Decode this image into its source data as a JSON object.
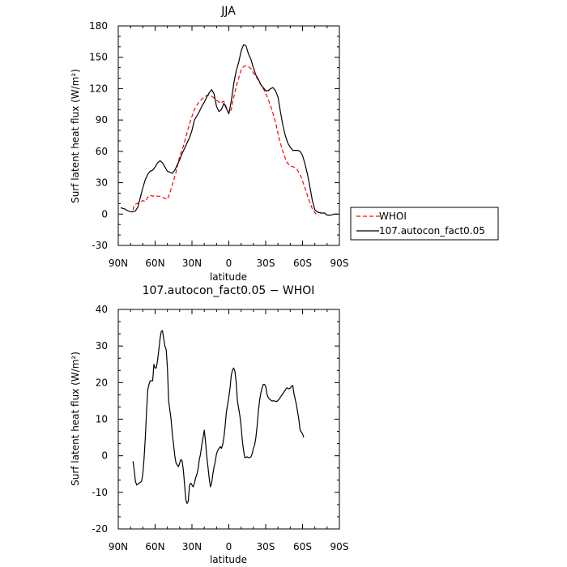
{
  "chart_data": [
    {
      "type": "line",
      "title": "JJA",
      "xlabel": "latitude",
      "ylabel": "Surf latent heat flux (W/m²)",
      "x_ticks": [
        "90N",
        "60N",
        "30N",
        "0",
        "30S",
        "60S",
        "90S"
      ],
      "x_tick_values": [
        90,
        60,
        30,
        0,
        -30,
        -60,
        -90
      ],
      "xlim": [
        90,
        -90
      ],
      "ylim": [
        -30,
        180
      ],
      "y_ticks": [
        -30,
        0,
        30,
        60,
        90,
        120,
        150,
        180
      ],
      "legend_placement": "right",
      "series": [
        {
          "name": "WHOI",
          "color": "#ff0000",
          "style": "dashed",
          "points": [
            [
              78,
              4
            ],
            [
              77,
              9
            ],
            [
              75,
              10
            ],
            [
              73,
              11
            ],
            [
              70,
              13
            ],
            [
              68,
              12
            ],
            [
              66,
              16
            ],
            [
              64,
              18
            ],
            [
              62,
              17
            ],
            [
              60,
              18
            ],
            [
              58,
              17
            ],
            [
              56,
              17
            ],
            [
              54,
              16
            ],
            [
              52,
              15
            ],
            [
              50,
              14
            ],
            [
              48,
              20
            ],
            [
              46,
              28
            ],
            [
              43,
              40
            ],
            [
              40,
              55
            ],
            [
              37,
              65
            ],
            [
              34,
              78
            ],
            [
              31,
              90
            ],
            [
              28,
              100
            ],
            [
              25,
              106
            ],
            [
              22,
              110
            ],
            [
              19,
              113
            ],
            [
              16,
              114
            ],
            [
              13,
              112
            ],
            [
              10,
              109
            ],
            [
              7,
              106
            ],
            [
              4,
              108
            ],
            [
              2,
              102
            ],
            [
              0,
              96
            ],
            [
              -2,
              100
            ],
            [
              -4,
              112
            ],
            [
              -6,
              122
            ],
            [
              -8,
              130
            ],
            [
              -10,
              138
            ],
            [
              -12,
              141
            ],
            [
              -14,
              142
            ],
            [
              -16,
              141
            ],
            [
              -18,
              139
            ],
            [
              -20,
              135
            ],
            [
              -23,
              130
            ],
            [
              -26,
              124
            ],
            [
              -29,
              118
            ],
            [
              -32,
              110
            ],
            [
              -35,
              100
            ],
            [
              -38,
              88
            ],
            [
              -41,
              72
            ],
            [
              -44,
              60
            ],
            [
              -47,
              50
            ],
            [
              -50,
              46
            ],
            [
              -53,
              45
            ],
            [
              -56,
              42
            ],
            [
              -59,
              35
            ],
            [
              -62,
              25
            ],
            [
              -65,
              14
            ],
            [
              -68,
              5
            ],
            [
              -71,
              0
            ],
            [
              -73,
              -2
            ]
          ]
        },
        {
          "name": "107.autocon_fact0.05",
          "color": "#000000",
          "style": "solid",
          "points": [
            [
              88,
              6
            ],
            [
              85,
              5
            ],
            [
              82,
              3
            ],
            [
              79,
              2
            ],
            [
              76,
              3
            ],
            [
              74,
              7
            ],
            [
              72,
              16
            ],
            [
              70,
              25
            ],
            [
              68,
              33
            ],
            [
              66,
              38
            ],
            [
              64,
              41
            ],
            [
              62,
              42
            ],
            [
              60,
              45
            ],
            [
              58,
              49
            ],
            [
              56,
              51
            ],
            [
              54,
              49
            ],
            [
              52,
              45
            ],
            [
              50,
              41
            ],
            [
              48,
              40
            ],
            [
              46,
              39
            ],
            [
              44,
              42
            ],
            [
              42,
              47
            ],
            [
              40,
              52
            ],
            [
              38,
              58
            ],
            [
              36,
              63
            ],
            [
              34,
              68
            ],
            [
              32,
              73
            ],
            [
              30,
              80
            ],
            [
              28,
              90
            ],
            [
              26,
              94
            ],
            [
              24,
              98
            ],
            [
              22,
              103
            ],
            [
              20,
              107
            ],
            [
              18,
              112
            ],
            [
              16,
              116
            ],
            [
              14,
              119
            ],
            [
              12,
              115
            ],
            [
              10,
              103
            ],
            [
              8,
              98
            ],
            [
              6,
              100
            ],
            [
              4,
              106
            ],
            [
              2,
              101
            ],
            [
              0,
              96
            ],
            [
              -2,
              108
            ],
            [
              -4,
              125
            ],
            [
              -6,
              137
            ],
            [
              -8,
              145
            ],
            [
              -10,
              156
            ],
            [
              -12,
              162
            ],
            [
              -14,
              161
            ],
            [
              -16,
              153
            ],
            [
              -18,
              148
            ],
            [
              -20,
              140
            ],
            [
              -22,
              133
            ],
            [
              -24,
              129
            ],
            [
              -26,
              124
            ],
            [
              -28,
              121
            ],
            [
              -30,
              118
            ],
            [
              -32,
              118
            ],
            [
              -34,
              120
            ],
            [
              -36,
              121
            ],
            [
              -38,
              118
            ],
            [
              -40,
              112
            ],
            [
              -42,
              98
            ],
            [
              -44,
              85
            ],
            [
              -46,
              75
            ],
            [
              -48,
              68
            ],
            [
              -50,
              64
            ],
            [
              -52,
              61
            ],
            [
              -54,
              61
            ],
            [
              -56,
              61
            ],
            [
              -58,
              60
            ],
            [
              -60,
              56
            ],
            [
              -62,
              48
            ],
            [
              -64,
              38
            ],
            [
              -66,
              26
            ],
            [
              -68,
              13
            ],
            [
              -70,
              4
            ],
            [
              -72,
              2
            ],
            [
              -75,
              1
            ],
            [
              -78,
              1
            ],
            [
              -80,
              -1
            ],
            [
              -83,
              -1
            ],
            [
              -86,
              0
            ],
            [
              -89,
              0
            ]
          ]
        }
      ]
    },
    {
      "type": "line",
      "title": "107.autocon_fact0.05 − WHOI",
      "xlabel": "latitude",
      "ylabel": "Surf latent heat flux (W/m²)",
      "x_ticks": [
        "90N",
        "60N",
        "30N",
        "0",
        "30S",
        "60S",
        "90S"
      ],
      "x_tick_values": [
        90,
        60,
        30,
        0,
        -30,
        -60,
        -90
      ],
      "xlim": [
        90,
        -90
      ],
      "ylim": [
        -20,
        40
      ],
      "y_ticks": [
        -20,
        -10,
        0,
        10,
        20,
        30,
        40
      ],
      "series": [
        {
          "color": "#000000",
          "style": "solid",
          "points": [
            [
              78,
              -1.5
            ],
            [
              77,
              -4
            ],
            [
              76,
              -7
            ],
            [
              75,
              -8
            ],
            [
              73,
              -7.5
            ],
            [
              71,
              -7
            ],
            [
              70,
              -5
            ],
            [
              69,
              -1
            ],
            [
              68,
              5
            ],
            [
              67,
              12
            ],
            [
              66,
              18
            ],
            [
              65,
              19.5
            ],
            [
              64,
              20.5
            ],
            [
              62,
              20.5
            ],
            [
              61,
              25
            ],
            [
              60,
              24
            ],
            [
              59,
              24
            ],
            [
              58,
              26
            ],
            [
              57,
              29
            ],
            [
              56,
              32
            ],
            [
              55,
              34
            ],
            [
              54,
              34.2
            ],
            [
              53,
              32
            ],
            [
              52,
              30
            ],
            [
              51,
              29
            ],
            [
              50,
              24
            ],
            [
              49,
              15
            ],
            [
              48,
              12.5
            ],
            [
              47,
              10
            ],
            [
              46,
              6
            ],
            [
              45,
              3
            ],
            [
              44,
              0
            ],
            [
              43,
              -2
            ],
            [
              42,
              -2.5
            ],
            [
              41,
              -3
            ],
            [
              40,
              -2
            ],
            [
              39,
              -1
            ],
            [
              38,
              -1.5
            ],
            [
              37,
              -4
            ],
            [
              36,
              -8
            ],
            [
              35,
              -12
            ],
            [
              34,
              -13
            ],
            [
              33,
              -12.5
            ],
            [
              32,
              -8
            ],
            [
              31,
              -7.5
            ],
            [
              30,
              -8
            ],
            [
              29,
              -8.5
            ],
            [
              28,
              -7.5
            ],
            [
              27,
              -6
            ],
            [
              26,
              -5
            ],
            [
              25,
              -3.5
            ],
            [
              24,
              -1
            ],
            [
              23,
              0.5
            ],
            [
              22,
              3
            ],
            [
              21,
              5
            ],
            [
              20,
              7
            ],
            [
              19,
              4
            ],
            [
              18,
              0
            ],
            [
              17,
              -3
            ],
            [
              16,
              -6
            ],
            [
              15,
              -8.5
            ],
            [
              14,
              -7.5
            ],
            [
              13,
              -5
            ],
            [
              12,
              -3
            ],
            [
              11,
              -1.5
            ],
            [
              10,
              0.5
            ],
            [
              9,
              1.5
            ],
            [
              8,
              2
            ],
            [
              7,
              2.5
            ],
            [
              6,
              2
            ],
            [
              5,
              3
            ],
            [
              4,
              5
            ],
            [
              3,
              8
            ],
            [
              2,
              12
            ],
            [
              1,
              14
            ],
            [
              0,
              16
            ],
            [
              -1,
              18.5
            ],
            [
              -2,
              22
            ],
            [
              -3,
              23.5
            ],
            [
              -4,
              24
            ],
            [
              -5,
              23
            ],
            [
              -6,
              20
            ],
            [
              -7,
              15
            ],
            [
              -8,
              13
            ],
            [
              -9,
              11
            ],
            [
              -10,
              8
            ],
            [
              -11,
              4
            ],
            [
              -12,
              1.5
            ],
            [
              -13,
              -0.5
            ],
            [
              -14,
              -0.4
            ],
            [
              -15,
              -0.3
            ],
            [
              -16,
              -0.5
            ],
            [
              -17,
              -0.5
            ],
            [
              -18,
              -0.3
            ],
            [
              -19,
              0.5
            ],
            [
              -20,
              2
            ],
            [
              -21,
              3
            ],
            [
              -22,
              5
            ],
            [
              -23,
              8
            ],
            [
              -24,
              12
            ],
            [
              -25,
              15
            ],
            [
              -26,
              17
            ],
            [
              -27,
              18.5
            ],
            [
              -28,
              19.5
            ],
            [
              -29,
              19.5
            ],
            [
              -30,
              19
            ],
            [
              -31,
              17
            ],
            [
              -32,
              16
            ],
            [
              -33,
              15.5
            ],
            [
              -35,
              15
            ],
            [
              -37,
              15
            ],
            [
              -39,
              14.8
            ],
            [
              -41,
              15.5
            ],
            [
              -43,
              16.5
            ],
            [
              -45,
              17.5
            ],
            [
              -46,
              18
            ],
            [
              -47,
              18.5
            ],
            [
              -48,
              18.5
            ],
            [
              -49,
              18.3
            ],
            [
              -50,
              18.5
            ],
            [
              -51,
              19
            ],
            [
              -52,
              19.2
            ],
            [
              -53,
              17
            ],
            [
              -54,
              15.5
            ],
            [
              -55,
              14
            ],
            [
              -56,
              12
            ],
            [
              -57,
              10
            ],
            [
              -58,
              7
            ],
            [
              -59,
              6.5
            ],
            [
              -60,
              6
            ],
            [
              -61,
              5
            ]
          ]
        }
      ]
    }
  ]
}
